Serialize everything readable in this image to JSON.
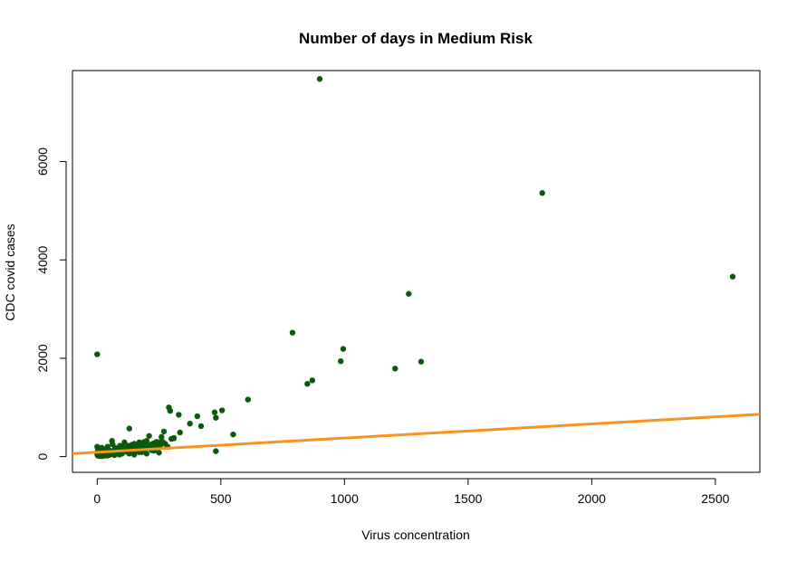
{
  "chart_data": {
    "type": "scatter",
    "title": "Number of days in Medium Risk",
    "xlabel": "Virus concentration",
    "ylabel": "CDC covid cases",
    "xlim": [
      -100,
      2680
    ],
    "ylim": [
      -320,
      7850
    ],
    "x_ticks": [
      0,
      500,
      1000,
      1500,
      2000,
      2500
    ],
    "y_ticks": [
      0,
      2000,
      4000,
      6000
    ],
    "grid": false,
    "legend": "none",
    "colors": {
      "points": "#0b5a0b",
      "trend_line": "#f7941d"
    },
    "series": [
      {
        "x": [
          900,
          1800,
          2570,
          1260,
          790,
          995,
          985,
          1205,
          1310,
          870,
          850,
          0,
          610,
          505,
          475,
          480,
          550,
          290,
          295,
          405,
          375,
          420,
          335,
          330,
          310,
          300,
          480,
          270,
          260,
          250,
          240,
          230,
          220,
          210,
          200,
          190,
          180,
          170,
          160,
          150,
          140,
          130,
          125,
          120,
          115,
          110,
          105,
          100,
          95,
          90,
          85,
          80,
          75,
          70,
          65,
          60,
          55,
          50,
          45,
          40,
          35,
          30,
          25,
          20,
          15,
          10,
          5,
          2,
          0,
          0,
          3,
          8,
          12,
          18,
          22,
          28,
          33,
          38,
          42,
          48,
          52,
          58,
          62,
          68,
          72,
          78,
          82,
          88,
          92,
          98,
          108,
          118,
          135,
          145,
          155,
          165,
          175,
          185,
          195,
          205,
          215,
          225,
          235,
          245,
          255,
          265,
          275,
          285,
          140,
          60,
          100,
          180,
          230,
          310,
          20,
          40,
          70,
          150,
          200,
          250,
          10,
          30,
          90,
          130,
          170,
          220,
          160,
          110
        ],
        "y": [
          7680,
          5360,
          3660,
          3310,
          2520,
          2190,
          1940,
          1790,
          1930,
          1550,
          1480,
          2080,
          1160,
          940,
          900,
          790,
          450,
          1000,
          930,
          820,
          670,
          620,
          490,
          850,
          370,
          360,
          110,
          510,
          400,
          290,
          300,
          270,
          250,
          420,
          320,
          300,
          250,
          290,
          200,
          260,
          240,
          570,
          220,
          180,
          170,
          150,
          160,
          200,
          120,
          170,
          140,
          110,
          150,
          130,
          100,
          320,
          90,
          120,
          80,
          110,
          70,
          60,
          80,
          50,
          40,
          70,
          30,
          20,
          200,
          50,
          130,
          100,
          60,
          180,
          40,
          90,
          150,
          60,
          200,
          30,
          120,
          70,
          250,
          90,
          180,
          60,
          130,
          80,
          220,
          110,
          140,
          100,
          160,
          130,
          180,
          120,
          170,
          200,
          150,
          240,
          190,
          260,
          210,
          280,
          230,
          300,
          260,
          200,
          80,
          50,
          60,
          90,
          120,
          380,
          10,
          20,
          30,
          40,
          60,
          80,
          10,
          20,
          40,
          60,
          90,
          130,
          210,
          290
        ]
      }
    ],
    "trend_line": {
      "x": [
        -100,
        2680
      ],
      "y": [
        60,
        860
      ]
    }
  }
}
